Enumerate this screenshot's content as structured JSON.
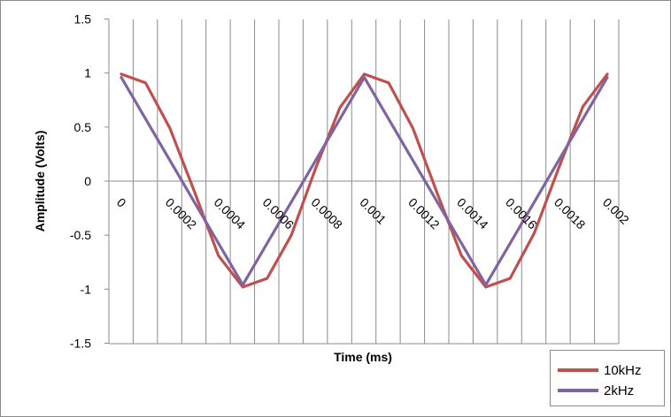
{
  "chart_data": {
    "type": "line",
    "xlabel": "Time (ms)",
    "ylabel": "Amplitude (Volts)",
    "ylim": [
      -1.5,
      1.5
    ],
    "yticks": [
      "1.5",
      "1",
      "0.5",
      "0",
      "-0.5",
      "-1",
      "-1.5"
    ],
    "xticks": [
      "0",
      "0.0002",
      "0.0004",
      "0.0006",
      "0.0008",
      "0.001",
      "0.0012",
      "0.0014",
      "0.0016",
      "0.0018",
      "0.002"
    ],
    "grid": "vertical",
    "legend_position": "bottom-right",
    "series": [
      {
        "name": "10kHz",
        "color": "#c0504d",
        "x": [
          0,
          0.0001,
          0.0002,
          0.0003,
          0.0004,
          0.0005,
          0.0006,
          0.0007,
          0.0008,
          0.0009,
          0.001,
          0.0011,
          0.0012,
          0.0013,
          0.0014,
          0.0015,
          0.0016,
          0.0017,
          0.0018,
          0.0019,
          0.002
        ],
        "values": [
          0.99,
          0.91,
          0.49,
          -0.09,
          -0.69,
          -0.98,
          -0.9,
          -0.5,
          0.12,
          0.68,
          0.99,
          0.91,
          0.49,
          -0.11,
          -0.69,
          -0.98,
          -0.9,
          -0.48,
          0.12,
          0.69,
          0.99
        ]
      },
      {
        "name": "2kHz",
        "color": "#8064a2",
        "x": [
          0,
          0.0005,
          0.001,
          0.0015,
          0.002
        ],
        "values": [
          0.96,
          -0.96,
          0.96,
          -0.96,
          0.96
        ]
      }
    ]
  }
}
